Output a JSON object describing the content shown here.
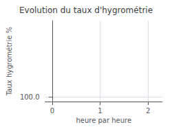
{
  "chart_data": {
    "type": "line",
    "title": "Evolution du taux d'hygrométrie",
    "xlabel": "heure par heure",
    "ylabel": "Taux hygrométrie %",
    "xlim": [
      -0.15,
      2.3
    ],
    "xticks": [
      0,
      1,
      2
    ],
    "ylim": [
      95.0,
      180.0
    ],
    "yticks": [
      {
        "value": 100.0,
        "label": "100.0"
      }
    ],
    "grid": true
  }
}
